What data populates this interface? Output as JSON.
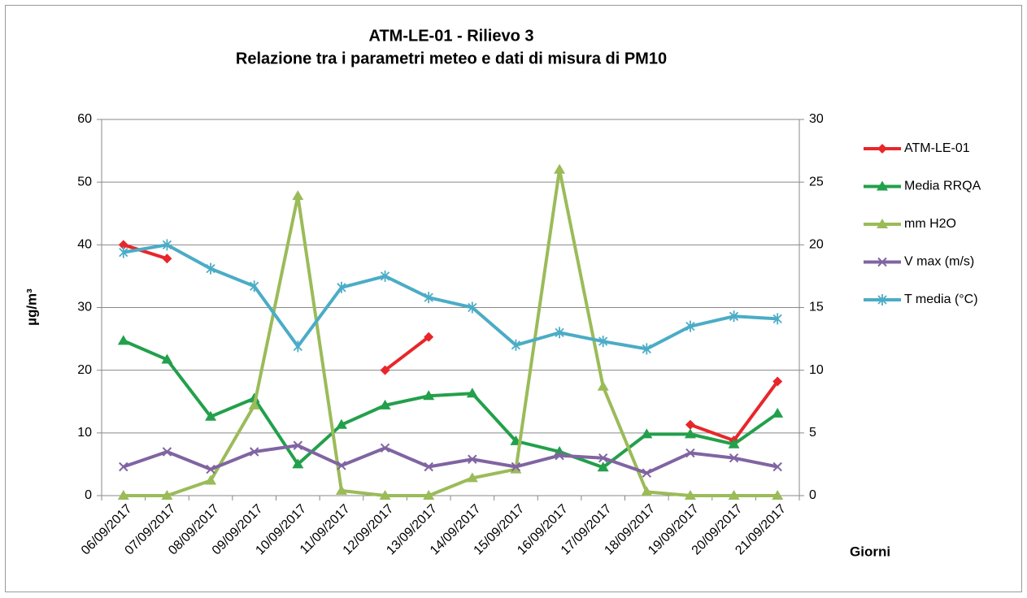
{
  "chart_data": {
    "type": "line",
    "title": "ATM-LE-01  - Rilievo 3",
    "subtitle": "Relazione tra i parametri meteo e dati di misura di PM10",
    "y_label": "µg/m³",
    "x_label": "Giorni",
    "categories": [
      "06/09/2017",
      "07/09/2017",
      "08/09/2017",
      "09/09/2017",
      "10/09/2017",
      "11/09/2017",
      "12/09/2017",
      "13/09/2017",
      "14/09/2017",
      "15/09/2017",
      "16/09/2017",
      "17/09/2017",
      "18/09/2017",
      "19/09/2017",
      "20/09/2017",
      "21/09/2017"
    ],
    "ylim": [
      0,
      60
    ],
    "yticks": [
      0,
      10,
      20,
      30,
      40,
      50,
      60
    ],
    "y2lim": [
      0,
      30
    ],
    "y2ticks": [
      0,
      5,
      10,
      15,
      20,
      25,
      30
    ],
    "grid": true,
    "legend": "right",
    "series": [
      {
        "name": "ATM-LE-01",
        "color": "#e8262a",
        "marker": "diamond",
        "values": [
          40,
          37.8,
          null,
          null,
          null,
          null,
          20,
          25.3,
          null,
          null,
          null,
          null,
          null,
          11.3,
          8.8,
          18.2
        ]
      },
      {
        "name": "Media RRQA",
        "color": "#22a04b",
        "marker": "triangle",
        "values": [
          24.7,
          21.7,
          12.6,
          15.5,
          5,
          11.3,
          14.4,
          15.9,
          16.3,
          8.7,
          7,
          4.5,
          9.8,
          9.8,
          8.2,
          13.1
        ]
      },
      {
        "name": "mm H2O",
        "color": "#9bbb59",
        "marker": "triangle",
        "axis": "y2",
        "values": [
          0,
          0,
          1.2,
          7.2,
          23.9,
          0.4,
          0,
          0,
          1.4,
          2.1,
          26,
          8.7,
          0.3,
          0,
          0,
          0
        ]
      },
      {
        "name": "V max (m/s)",
        "color": "#8064a2",
        "marker": "x",
        "axis": "y2",
        "values": [
          2.3,
          3.5,
          2.1,
          3.5,
          4,
          2.4,
          3.8,
          2.3,
          2.9,
          2.3,
          3.2,
          3,
          1.8,
          3.4,
          3,
          2.3
        ]
      },
      {
        "name": "T media (°C)",
        "color": "#4bacc6",
        "marker": "star",
        "axis": "y2",
        "values": [
          19.4,
          20,
          18.1,
          16.7,
          11.9,
          16.6,
          17.5,
          15.8,
          15,
          12,
          13,
          12.3,
          11.7,
          13.5,
          14.3,
          14.1
        ]
      }
    ]
  }
}
